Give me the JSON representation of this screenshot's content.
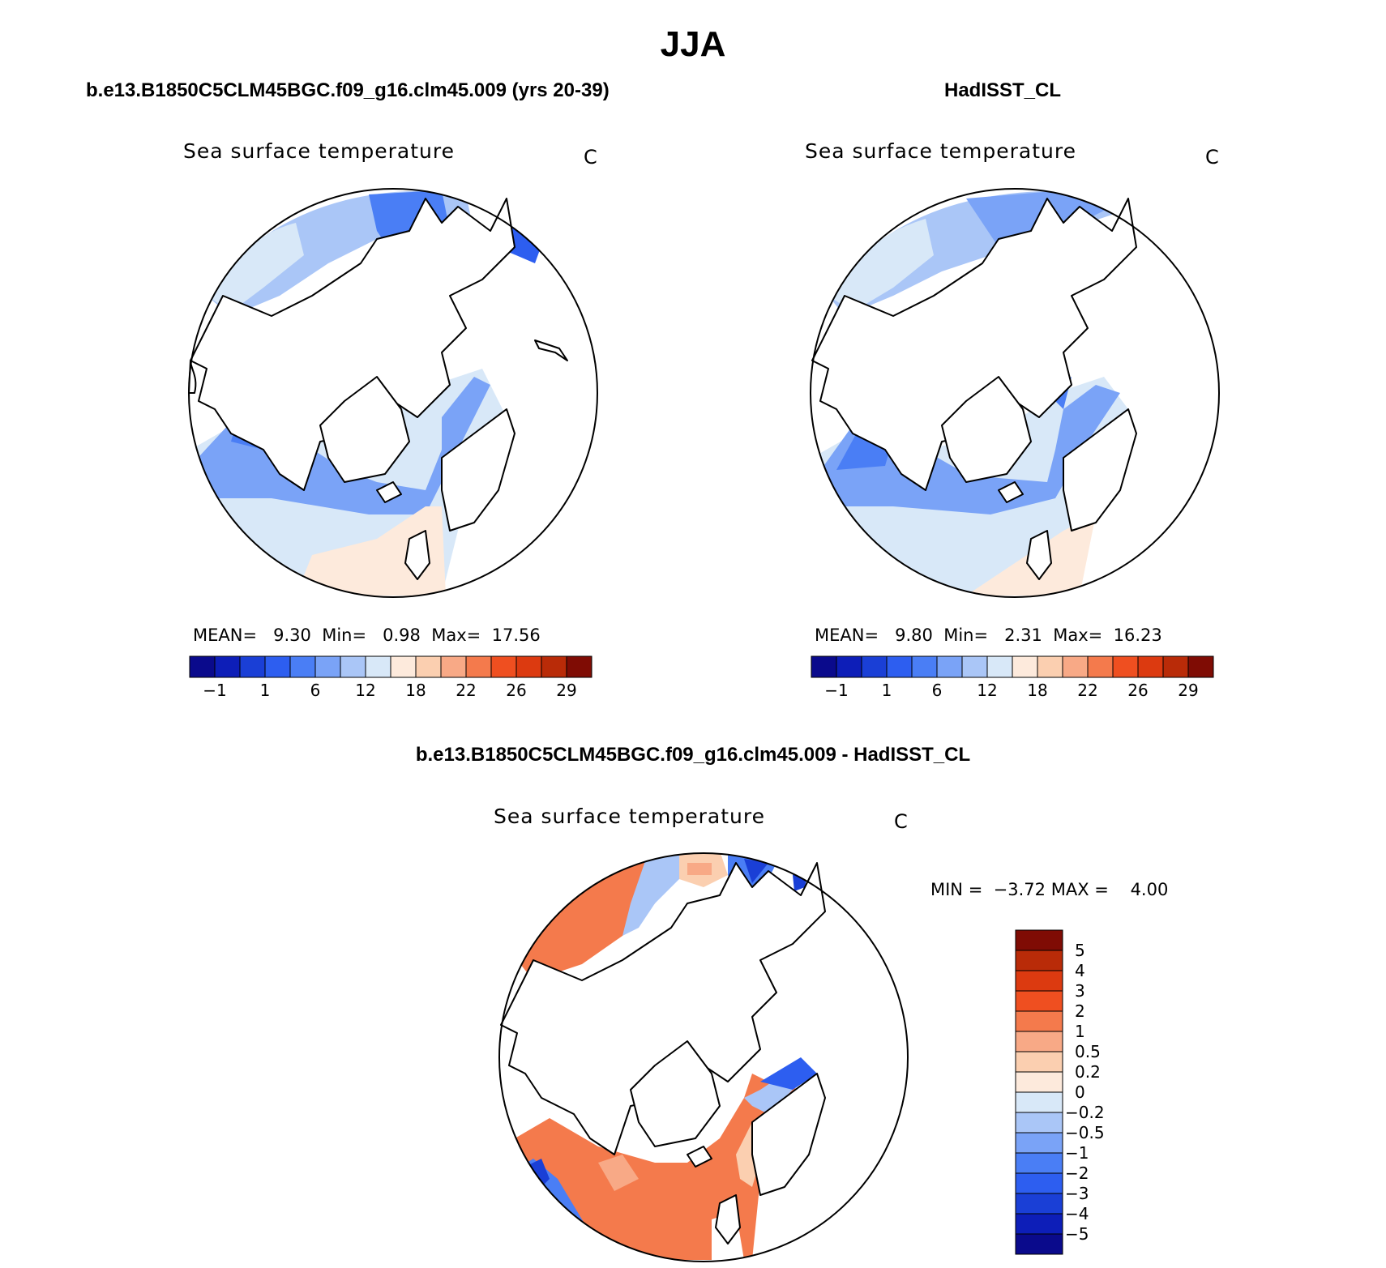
{
  "figure": {
    "title": "JJA",
    "palette": [
      "#0a0a8c",
      "#0d1eb8",
      "#1a3fd6",
      "#2d5ef0",
      "#4a7ef5",
      "#7aa3f7",
      "#aac6f7",
      "#d8e8f8",
      "#fdeadc",
      "#fbcfb0",
      "#f8a986",
      "#f47a4c",
      "#ef4f20",
      "#dc3a10",
      "#b92b08",
      "#7f0c04"
    ],
    "colors": {
      "land": "#ffffff",
      "coast": "#000000"
    }
  },
  "panels": [
    {
      "title": "b.e13.B1850C5CLM45BGC.f09_g16.clm45.009 (yrs 20-39)",
      "variable": "Sea surface temperature",
      "units": "C",
      "stats": {
        "mean_label": "MEAN=",
        "mean": "9.30",
        "min_label": "Min=",
        "min": "0.98",
        "max_label": "Max=",
        "max": "17.56"
      },
      "colorbar_ticks": [
        "−1",
        "1",
        "6",
        "12",
        "18",
        "22",
        "26",
        "29"
      ]
    },
    {
      "title": "HadISST_CL",
      "variable": "Sea surface temperature",
      "units": "C",
      "stats": {
        "mean_label": "MEAN=",
        "mean": "9.80",
        "min_label": "Min=",
        "min": "2.31",
        "max_label": "Max=",
        "max": "16.23"
      },
      "colorbar_ticks": [
        "−1",
        "1",
        "6",
        "12",
        "18",
        "22",
        "26",
        "29"
      ]
    },
    {
      "title": "b.e13.B1850C5CLM45BGC.f09_g16.clm45.009 - HadISST_CL",
      "variable": "Sea surface temperature",
      "units": "C",
      "stats": {
        "min_label": "MIN =",
        "min": "−3.72",
        "max_label": "MAX =",
        "max": "4.00"
      },
      "colorbar_ticks": [
        "5",
        "4",
        "3",
        "2",
        "1",
        "0.5",
        "0.2",
        "0",
        "−0.2",
        "−0.5",
        "−1",
        "−2",
        "−3",
        "−4",
        "−5"
      ]
    }
  ]
}
